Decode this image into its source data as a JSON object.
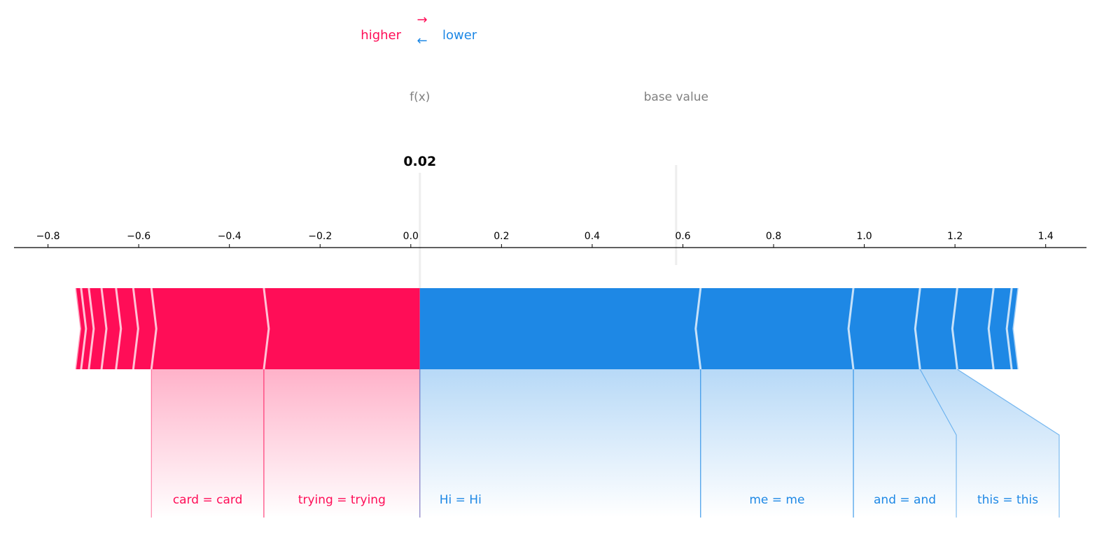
{
  "legend": {
    "higher_label": "higher",
    "lower_label": "lower",
    "higher_arrow": "→",
    "lower_arrow": "←",
    "higher_color": "#ff0d57",
    "lower_color": "#1e88e5"
  },
  "header": {
    "fx_label": "f(x)",
    "base_value_label": "base value",
    "fx_value_text": "0.02"
  },
  "chart_data": {
    "type": "force",
    "output_value": 0.02,
    "base_value": 0.585,
    "xlim": [
      -0.875,
      1.49
    ],
    "ticks": [
      -0.8,
      -0.6,
      -0.4,
      -0.2,
      0.0,
      0.2,
      0.4,
      0.6,
      0.8,
      1.0,
      1.2,
      1.4
    ],
    "tick_labels": [
      "−0.8",
      "−0.6",
      "−0.4",
      "−0.2",
      "0.0",
      "0.2",
      "0.4",
      "0.6",
      "0.8",
      "1.0",
      "1.2",
      "1.4"
    ],
    "positive": {
      "color": "#ff0d57",
      "boundaries": [
        -0.74,
        -0.727,
        -0.71,
        -0.682,
        -0.65,
        -0.612,
        -0.572,
        -0.324,
        0.02
      ],
      "labels": [
        {
          "text": "card = card",
          "seg_start": -0.572,
          "seg_end": -0.324
        },
        {
          "text": "trying = trying",
          "seg_start": -0.324,
          "seg_end": 0.02
        }
      ]
    },
    "negative": {
      "color": "#1e88e5",
      "boundaries": [
        0.02,
        0.639,
        0.976,
        1.123,
        1.205,
        1.285,
        1.325,
        1.34
      ],
      "labels": [
        {
          "text": "Hi = Hi",
          "seg_start": 0.02,
          "seg_end": 0.639
        },
        {
          "text": "me = me",
          "seg_start": 0.639,
          "seg_end": 0.976
        },
        {
          "text": "and = and",
          "seg_start": 0.976,
          "seg_end": 1.123
        },
        {
          "text": "this = this",
          "seg_start": 1.123,
          "seg_end": 1.205
        }
      ]
    }
  }
}
